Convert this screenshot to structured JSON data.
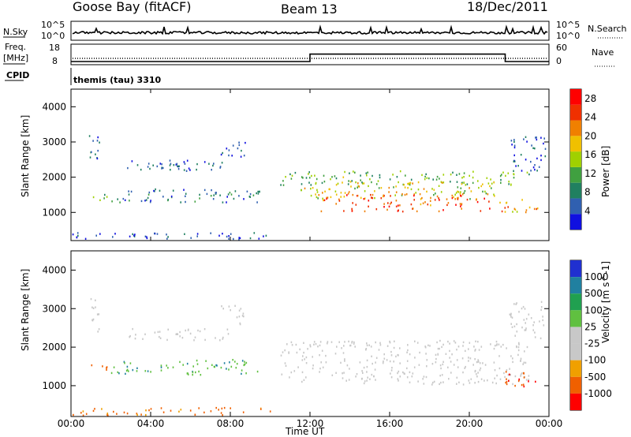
{
  "header": {
    "station": "Goose Bay (fitACF)",
    "beam": "Beam 13",
    "date": "18/Dec/2011"
  },
  "top_panels": {
    "nsky_label": "N.Sky",
    "nsky_ticks": [
      "10^5",
      "10^0"
    ],
    "nsearch_label": "N.Search",
    "nsearch_ticks": [
      "10^5",
      "10^0"
    ],
    "freq_label": "Freq.",
    "freq_unit": "[MHz]",
    "freq_ticks": [
      "18",
      "8"
    ],
    "nave_label": "Nave",
    "nave_ticks": [
      "60",
      "0"
    ],
    "cpid_label": "CPID",
    "cpid_value": "themis (tau) 3310"
  },
  "x_axis": {
    "label": "Time UT",
    "ticks": [
      "00:00",
      "04:00",
      "08:00",
      "12:00",
      "16:00",
      "20:00",
      "00:00"
    ]
  },
  "colors": {
    "velocity_gray": "#c8c8c8",
    "power_scale": [
      "#1010e0",
      "#3060b0",
      "#208060",
      "#40a040",
      "#a0d000",
      "#f0c000",
      "#f08000",
      "#f03000",
      "#ff0000"
    ],
    "velocity_scale": [
      "#2030d0",
      "#2080a0",
      "#20a050",
      "#60c040",
      "#c8c8c8",
      "#c8c8c8",
      "#f0a000",
      "#f06000",
      "#ff0000"
    ]
  },
  "chart_data": [
    {
      "type": "heatmap",
      "title": "",
      "xlabel": "",
      "ylabel": "Slant Range [km]",
      "ylim": [
        200,
        4500
      ],
      "xlim_hours": [
        0,
        24
      ],
      "yticks": [
        "4000",
        "3000",
        "2000",
        "1000"
      ],
      "colorbar": {
        "label": "Power [dB]",
        "ticks": [
          "28",
          "24",
          "20",
          "16",
          "12",
          "8",
          "4"
        ],
        "range": [
          0,
          30
        ]
      },
      "regions": [
        {
          "t": [
            0.8,
            1.4
          ],
          "r": [
            2400,
            3300
          ],
          "value": 6
        },
        {
          "t": [
            0.9,
            1.8
          ],
          "r": [
            1350,
            1600
          ],
          "value": 12
        },
        {
          "t": [
            2.8,
            5.5
          ],
          "r": [
            2200,
            2500
          ],
          "value": 6
        },
        {
          "t": [
            4.5,
            8.2
          ],
          "r": [
            2200,
            2500
          ],
          "value": 5
        },
        {
          "t": [
            2.0,
            9.5
          ],
          "r": [
            1300,
            1700
          ],
          "value": 7
        },
        {
          "t": [
            7.5,
            8.8
          ],
          "r": [
            2600,
            3100
          ],
          "value": 5
        },
        {
          "t": [
            0.0,
            10.0
          ],
          "r": [
            250,
            450
          ],
          "value": 4
        },
        {
          "t": [
            10.5,
            23.0
          ],
          "r": [
            1800,
            2200
          ],
          "value": 12
        },
        {
          "t": [
            11.5,
            21.5
          ],
          "r": [
            1400,
            1900
          ],
          "value": 17
        },
        {
          "t": [
            12.5,
            21.0
          ],
          "r": [
            1050,
            1550
          ],
          "value": 24
        },
        {
          "t": [
            21.5,
            23.5
          ],
          "r": [
            1000,
            1400
          ],
          "value": 20
        },
        {
          "t": [
            22.0,
            23.8
          ],
          "r": [
            2200,
            3200
          ],
          "value": 5
        }
      ]
    },
    {
      "type": "heatmap",
      "title": "",
      "xlabel": "Time UT",
      "ylabel": "Slant Range [km]",
      "ylim": [
        200,
        4500
      ],
      "xlim_hours": [
        0,
        24
      ],
      "yticks": [
        "4000",
        "3000",
        "2000",
        "1000"
      ],
      "colorbar": {
        "label": "Velocity [m s^-1]",
        "ticks": [
          "1000",
          "500",
          "100",
          "25",
          "-25",
          "-100",
          "-500",
          "-1000"
        ]
      },
      "regions": [
        {
          "t": [
            0.8,
            1.4
          ],
          "r": [
            2400,
            3300
          ],
          "value": 0
        },
        {
          "t": [
            0.9,
            1.8
          ],
          "r": [
            1350,
            1600
          ],
          "value": -300
        },
        {
          "t": [
            2.8,
            8.2
          ],
          "r": [
            2200,
            2500
          ],
          "value": 0
        },
        {
          "t": [
            2.0,
            9.5
          ],
          "r": [
            1300,
            1700
          ],
          "value": 80
        },
        {
          "t": [
            7.5,
            8.8
          ],
          "r": [
            2600,
            3100
          ],
          "value": 0
        },
        {
          "t": [
            0.0,
            10.0
          ],
          "r": [
            250,
            450
          ],
          "value": -150
        },
        {
          "t": [
            10.5,
            23.0
          ],
          "r": [
            1050,
            2200
          ],
          "value": 0
        },
        {
          "t": [
            21.5,
            23.5
          ],
          "r": [
            1000,
            1400
          ],
          "value": -400
        },
        {
          "t": [
            22.0,
            23.8
          ],
          "r": [
            2200,
            3200
          ],
          "value": 0
        }
      ]
    }
  ],
  "frequency_series": {
    "type": "step",
    "x_hours": [
      0,
      12,
      12,
      21.8,
      21.8,
      24
    ],
    "y_mhz": [
      10,
      10,
      14.7,
      14.7,
      10,
      10
    ]
  }
}
